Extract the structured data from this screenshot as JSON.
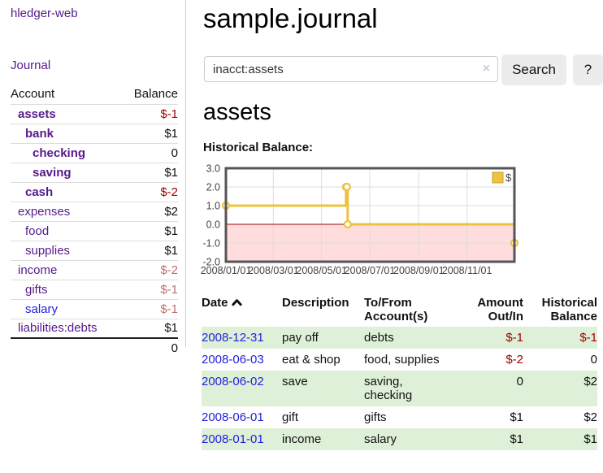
{
  "app": {
    "title": "hledger-web",
    "nav_journal": "Journal"
  },
  "sidebar": {
    "header": {
      "account": "Account",
      "balance": "Balance"
    },
    "accounts": [
      {
        "name": "assets",
        "balance": "$-1"
      },
      {
        "name": "bank",
        "balance": "$1"
      },
      {
        "name": "checking",
        "balance": "0"
      },
      {
        "name": "saving",
        "balance": "$1"
      },
      {
        "name": "cash",
        "balance": "$-2"
      },
      {
        "name": "expenses",
        "balance": "$2"
      },
      {
        "name": "food",
        "balance": "$1"
      },
      {
        "name": "supplies",
        "balance": "$1"
      },
      {
        "name": "income",
        "balance": "$-2"
      },
      {
        "name": "gifts",
        "balance": "$-1"
      },
      {
        "name": "salary",
        "balance": "$-1"
      },
      {
        "name": "liabilities:debts",
        "balance": "$1"
      }
    ],
    "total": "0"
  },
  "main": {
    "title": "sample.journal",
    "search": {
      "value": "inacct:assets",
      "clear_icon": "×",
      "button": "Search",
      "help_button": "?"
    },
    "account_heading": "assets",
    "chart_label": "Historical Balance:"
  },
  "chart_data": {
    "type": "line",
    "style": "steps",
    "title": "Historical Balance",
    "xlim": [
      "2008-01-01",
      "2008-12-31"
    ],
    "ylim": [
      -2.0,
      3.0
    ],
    "yticks": [
      3.0,
      2.0,
      1.0,
      0.0,
      -1.0,
      -2.0
    ],
    "xticks": [
      {
        "value": "2008-01-01",
        "label": "2008/01/01"
      },
      {
        "value": "2008-03-01",
        "label": "2008/03/01"
      },
      {
        "value": "2008-05-01",
        "label": "2008/05/01"
      },
      {
        "value": "2008-07-01",
        "label": "2008/07/01"
      },
      {
        "value": "2008-09-01",
        "label": "2008/09/01"
      },
      {
        "value": "2008-11-01",
        "label": "2008/11/01"
      }
    ],
    "series": [
      {
        "name": "$",
        "color": "#edc240",
        "points": [
          [
            "2008-01-01",
            1
          ],
          [
            "2008-06-01",
            2
          ],
          [
            "2008-06-02",
            2
          ],
          [
            "2008-06-03",
            0
          ],
          [
            "2008-12-31",
            -1
          ]
        ]
      }
    ],
    "legend_position": "top-right",
    "grid": true,
    "colors": {
      "negative_region": "#ffdddd",
      "zero_line": "#a40000",
      "grid": "#dddddd",
      "border": "#555555"
    }
  },
  "register": {
    "columns": {
      "date": "Date",
      "description": "Description",
      "tofrom": "To/From Account(s)",
      "amount": "Amount Out/In",
      "historical": "Historical Balance"
    },
    "rows": [
      {
        "date": "2008-12-31",
        "description": "pay off",
        "accounts": "debts",
        "amount": "$-1",
        "balance": "$-1"
      },
      {
        "date": "2008-06-03",
        "description": "eat & shop",
        "accounts": "food, supplies",
        "amount": "$-2",
        "balance": "0"
      },
      {
        "date": "2008-06-02",
        "description": "save",
        "accounts": "saving, checking",
        "amount": "0",
        "balance": "$2"
      },
      {
        "date": "2008-06-01",
        "description": "gift",
        "accounts": "gifts",
        "amount": "$1",
        "balance": "$2"
      },
      {
        "date": "2008-01-01",
        "description": "income",
        "accounts": "salary",
        "amount": "$1",
        "balance": "$1"
      }
    ]
  }
}
